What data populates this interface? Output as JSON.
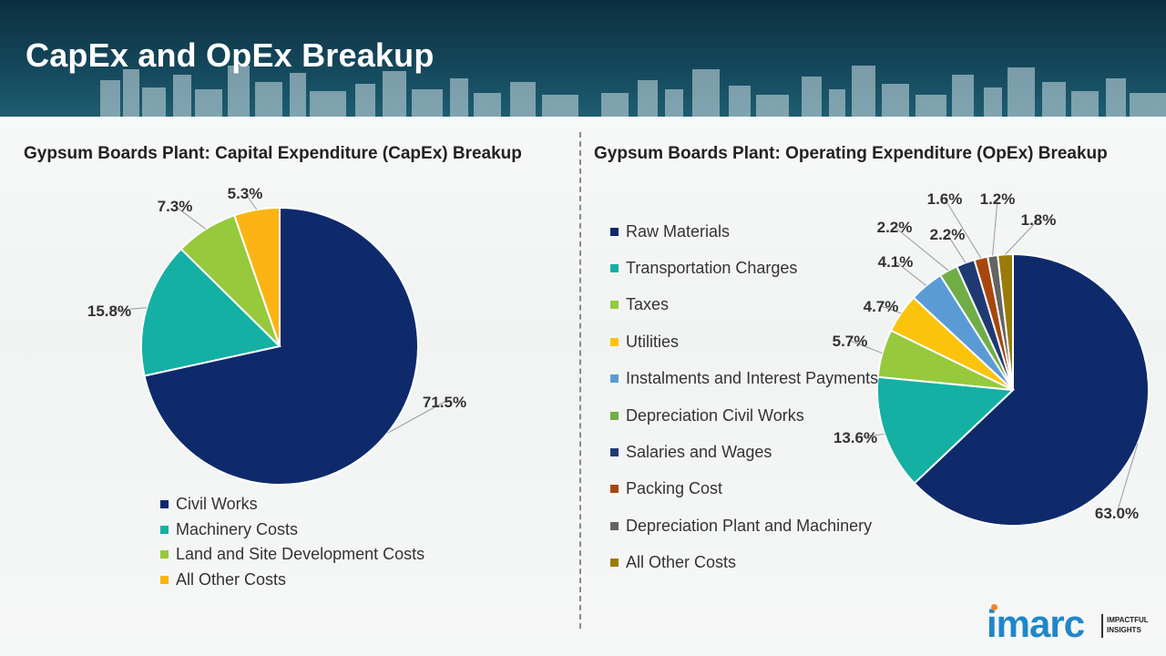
{
  "page": {
    "title": "CapEx and OpEx Breakup"
  },
  "logo": {
    "word": "imarc",
    "tagline_1": "IMPACTFUL",
    "tagline_2": "INSIGHTS",
    "color": "#1f87c9",
    "accent": "#f08a24"
  },
  "chart_data": [
    {
      "type": "pie",
      "title": "Gypsum Boards Plant: Capital Expenditure (CapEx) Breakup",
      "legend_position": "bottom",
      "categories": [
        "Civil Works",
        "Machinery Costs",
        "Land and Site Development Costs",
        "All Other Costs"
      ],
      "values": [
        71.5,
        15.8,
        7.3,
        5.3
      ],
      "labels": [
        "71.5%",
        "15.8%",
        "7.3%",
        "5.3%"
      ],
      "colors": [
        "#0e2a6b",
        "#14b0a3",
        "#96c93c",
        "#fbb414"
      ]
    },
    {
      "type": "pie",
      "title": "Gypsum Boards Plant: Operating Expenditure (OpEx) Breakup",
      "legend_position": "left",
      "categories": [
        "Raw Materials",
        "Transportation Charges",
        "Taxes",
        "Utilities",
        "Instalments and Interest Payments",
        "Depreciation Civil Works",
        "Salaries and Wages",
        "Packing Cost",
        "Depreciation Plant and Machinery",
        "All Other Costs"
      ],
      "values": [
        63.0,
        13.6,
        5.7,
        4.7,
        4.1,
        2.2,
        2.2,
        1.6,
        1.2,
        1.8
      ],
      "labels": [
        "63.0%",
        "13.6%",
        "5.7%",
        "4.7%",
        "4.1%",
        "2.2%",
        "2.2%",
        "1.6%",
        "1.2%",
        "1.8%"
      ],
      "colors": [
        "#0e2a6b",
        "#14b0a3",
        "#96c93c",
        "#fbc30c",
        "#5b9bd5",
        "#70ad47",
        "#1f3a73",
        "#a7470d",
        "#636363",
        "#9a7b0a"
      ]
    }
  ]
}
